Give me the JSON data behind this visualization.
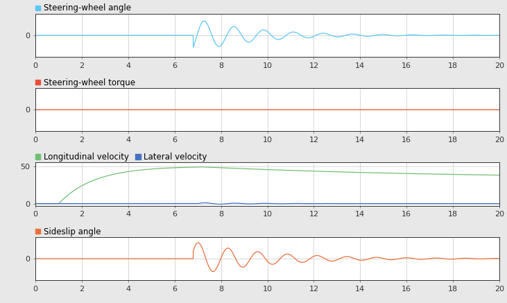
{
  "title1": "Steering-wheel angle",
  "title2": "Steering-wheel torque",
  "title3_leg1": "Longitudinal velocity",
  "title3_leg2": "Lateral velocity",
  "title4": "Sideslip angle",
  "color_blue": "#5BC8F5",
  "color_red": "#E8503A",
  "color_green": "#70C070",
  "color_dark_blue": "#4472C4",
  "color_orange": "#E8713A",
  "xlim": [
    0,
    20
  ],
  "xticks": [
    0,
    2,
    4,
    6,
    8,
    10,
    12,
    14,
    16,
    18,
    20
  ],
  "bg_color": "#E8E8E8",
  "plot_bg": "#FFFFFF",
  "grid_color": "#C8C8C8",
  "label_fontsize": 8.5,
  "tick_fontsize": 8
}
